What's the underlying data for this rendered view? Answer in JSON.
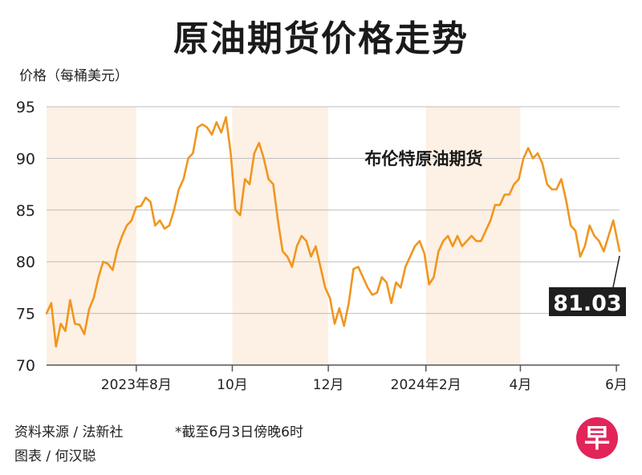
{
  "title": "原油期货价格走势",
  "ylabel": "价格（每桶美元）",
  "footer": {
    "source": "资料来源 / 法新社",
    "cutoff": "*截至6月3日傍晚6时",
    "credit": "图表 / 何汉聪",
    "logo_char": "早"
  },
  "colors": {
    "line": "#f0961e",
    "band": "#fdf0e4",
    "callout_bg": "#1f1f1f",
    "logo": "#e2245a"
  },
  "chart_data": {
    "type": "line",
    "title": "原油期货价格走势",
    "ylabel": "价格（每桶美元）",
    "ylim": [
      70,
      95
    ],
    "yticks": [
      70,
      75,
      80,
      85,
      90,
      95
    ],
    "xlim": [
      "2023-06-05",
      "2024-06-03"
    ],
    "xticks": [
      {
        "date": "2023-08-01",
        "label": "2023年8月"
      },
      {
        "date": "2023-10-01",
        "label": "10月"
      },
      {
        "date": "2023-12-01",
        "label": "12月"
      },
      {
        "date": "2024-02-01",
        "label": "2024年2月"
      },
      {
        "date": "2024-04-01",
        "label": "4月"
      },
      {
        "date": "2024-06-01",
        "label": "6月"
      }
    ],
    "shaded_ranges": [
      [
        "2023-06-05",
        "2023-08-01"
      ],
      [
        "2023-10-01",
        "2023-12-01"
      ],
      [
        "2024-02-01",
        "2024-04-01"
      ]
    ],
    "series": [
      {
        "name": "布伦特原油期货",
        "x": [
          "2023-06-05",
          "2023-06-08",
          "2023-06-11",
          "2023-06-14",
          "2023-06-17",
          "2023-06-20",
          "2023-06-23",
          "2023-06-26",
          "2023-06-29",
          "2023-07-02",
          "2023-07-05",
          "2023-07-08",
          "2023-07-11",
          "2023-07-14",
          "2023-07-17",
          "2023-07-20",
          "2023-07-23",
          "2023-07-26",
          "2023-07-29",
          "2023-08-01",
          "2023-08-04",
          "2023-08-07",
          "2023-08-10",
          "2023-08-13",
          "2023-08-16",
          "2023-08-19",
          "2023-08-22",
          "2023-08-25",
          "2023-08-28",
          "2023-08-31",
          "2023-09-03",
          "2023-09-06",
          "2023-09-09",
          "2023-09-12",
          "2023-09-15",
          "2023-09-18",
          "2023-09-21",
          "2023-09-24",
          "2023-09-27",
          "2023-09-30",
          "2023-10-03",
          "2023-10-06",
          "2023-10-09",
          "2023-10-12",
          "2023-10-15",
          "2023-10-18",
          "2023-10-21",
          "2023-10-24",
          "2023-10-27",
          "2023-10-30",
          "2023-11-02",
          "2023-11-05",
          "2023-11-08",
          "2023-11-11",
          "2023-11-14",
          "2023-11-17",
          "2023-11-20",
          "2023-11-23",
          "2023-11-26",
          "2023-11-29",
          "2023-12-02",
          "2023-12-05",
          "2023-12-08",
          "2023-12-11",
          "2023-12-14",
          "2023-12-17",
          "2023-12-20",
          "2023-12-23",
          "2023-12-26",
          "2023-12-29",
          "2024-01-01",
          "2024-01-04",
          "2024-01-07",
          "2024-01-10",
          "2024-01-13",
          "2024-01-16",
          "2024-01-19",
          "2024-01-22",
          "2024-01-25",
          "2024-01-28",
          "2024-01-31",
          "2024-02-03",
          "2024-02-06",
          "2024-02-09",
          "2024-02-12",
          "2024-02-15",
          "2024-02-18",
          "2024-02-21",
          "2024-02-24",
          "2024-02-27",
          "2024-03-01",
          "2024-03-04",
          "2024-03-07",
          "2024-03-10",
          "2024-03-13",
          "2024-03-16",
          "2024-03-19",
          "2024-03-22",
          "2024-03-25",
          "2024-03-28",
          "2024-03-31",
          "2024-04-03",
          "2024-04-06",
          "2024-04-09",
          "2024-04-12",
          "2024-04-15",
          "2024-04-18",
          "2024-04-21",
          "2024-04-24",
          "2024-04-27",
          "2024-04-30",
          "2024-05-03",
          "2024-05-06",
          "2024-05-09",
          "2024-05-12",
          "2024-05-15",
          "2024-05-18",
          "2024-05-21",
          "2024-05-24",
          "2024-05-27",
          "2024-05-30",
          "2024-06-03"
        ],
        "values": [
          75.0,
          76.0,
          71.8,
          74.0,
          73.3,
          76.3,
          74.0,
          73.9,
          73.0,
          75.4,
          76.5,
          78.5,
          80.0,
          79.8,
          79.2,
          81.2,
          82.5,
          83.5,
          84.0,
          85.3,
          85.4,
          86.2,
          85.8,
          83.5,
          84.0,
          83.2,
          83.5,
          85.0,
          87.0,
          88.0,
          90.0,
          90.5,
          93.0,
          93.3,
          93.0,
          92.3,
          93.5,
          92.5,
          94.0,
          90.5,
          85.0,
          84.5,
          88.0,
          87.5,
          90.5,
          91.5,
          90.0,
          88.0,
          87.5,
          84.0,
          81.0,
          80.5,
          79.5,
          81.5,
          82.5,
          82.0,
          80.5,
          81.5,
          79.5,
          77.5,
          76.5,
          74.0,
          75.5,
          73.8,
          76.0,
          79.3,
          79.5,
          78.5,
          77.5,
          76.8,
          77.0,
          78.5,
          78.0,
          76.0,
          78.0,
          77.5,
          79.5,
          80.5,
          81.5,
          82.0,
          80.8,
          77.8,
          78.5,
          81.0,
          82.0,
          82.5,
          81.5,
          82.5,
          81.5,
          82.0,
          82.5,
          82.0,
          82.0,
          83.0,
          84.0,
          85.5,
          85.5,
          86.5,
          86.5,
          87.5,
          88.0,
          90.0,
          91.0,
          90.0,
          90.5,
          89.5,
          87.5,
          87.0,
          87.0,
          88.0,
          86.0,
          83.5,
          83.0,
          80.5,
          81.5,
          83.5,
          82.5,
          82.0,
          81.0,
          82.5,
          84.0,
          81.03
        ]
      }
    ],
    "annotations": [
      {
        "text": "布伦特原油期货"
      },
      {
        "text": "81.03",
        "date": "2024-06-03",
        "value": 81.03
      }
    ]
  }
}
